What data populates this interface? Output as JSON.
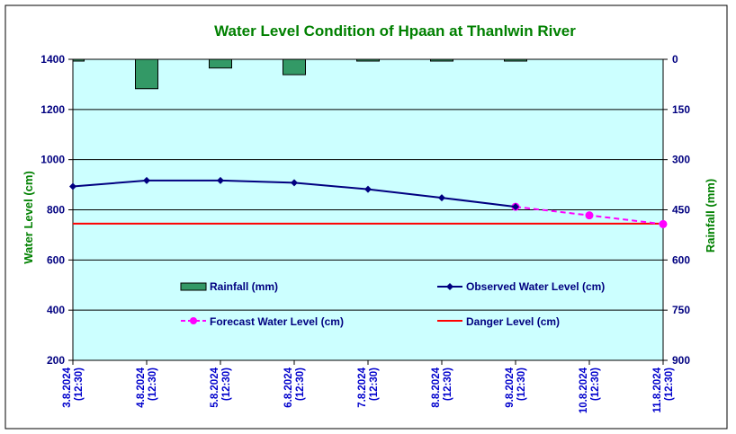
{
  "chart_data": {
    "type": "line",
    "title": "Water Level Condition of Hpaan at Thanlwin River",
    "ylabel_left": "Water Level (cm)",
    "ylabel_right": "Rainfall (mm)",
    "ylim_left": [
      200,
      1400
    ],
    "yticks_left": [
      200,
      400,
      600,
      800,
      1000,
      1200,
      1400
    ],
    "ylim_right": [
      900,
      0
    ],
    "yticks_right": [
      0,
      150,
      300,
      450,
      600,
      750,
      900
    ],
    "categories": [
      [
        "3.8.2024",
        "(12:30)"
      ],
      [
        "4.8.2024",
        "(12:30)"
      ],
      [
        "5.8.2024",
        "(12:30)"
      ],
      [
        "6.8.2024",
        "(12:30)"
      ],
      [
        "7.8.2024",
        "(12:30)"
      ],
      [
        "8.8.2024",
        "(12:30)"
      ],
      [
        "9.8.2024",
        "(12:30)"
      ],
      [
        "10.8.2024",
        "(12:30)"
      ],
      [
        "11.8.2024",
        "(12:30)"
      ]
    ],
    "rainfall": {
      "name": "Rainfall (mm)",
      "axis": "right",
      "color": "#339966",
      "values": [
        2,
        88,
        26,
        46,
        5,
        5,
        5
      ]
    },
    "observed": {
      "name": "Observed Water Level (cm)",
      "axis": "left",
      "color": "#000080",
      "values": [
        893,
        917,
        917,
        908,
        882,
        848,
        812
      ]
    },
    "forecast": {
      "name": "Forecast Water Level (cm)",
      "axis": "left",
      "color": "#ff00ff",
      "start_index": 6,
      "values": [
        812,
        778,
        743
      ]
    },
    "danger": {
      "name": "Danger Level (cm)",
      "axis": "left",
      "color": "#ff0000",
      "value": 745
    },
    "plot_background": "#ccffff",
    "grid": true,
    "legend_placement": "inside-lower"
  }
}
